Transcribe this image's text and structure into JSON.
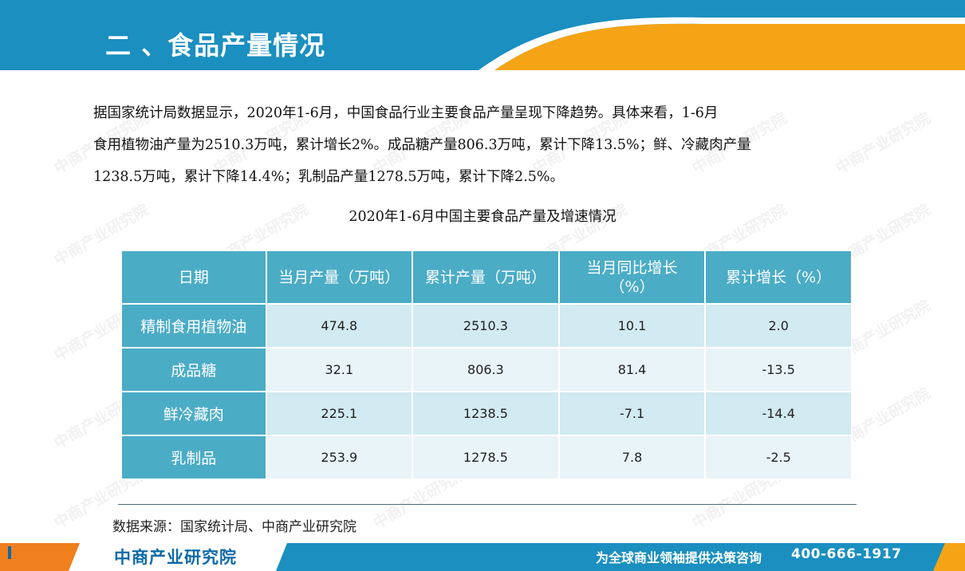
{
  "header": {
    "title": "二 、食品产量情况"
  },
  "paragraph": {
    "line1": "据国家统计局数据显示，2020年1-6月，中国食品行业主要食品产量呈现下降趋势。具体来看，1-6月",
    "line2": "食用植物油产量为2510.3万吨，累计增长2%。成品糖产量806.3万吨，累计下降13.5%；鲜、冷藏肉产量",
    "line3": "1238.5万吨，累计下降14.4%；乳制品产量1278.5万吨，累计下降2.5%。"
  },
  "table": {
    "title": "2020年1-6月中国主要食品产量及增速情况",
    "headers": [
      "日期",
      "当月产量（万吨）",
      "累计产量（万吨）",
      "当月同比增长\n（%）",
      "累计增长（%）"
    ],
    "header_line1": "当月同比增长",
    "header_line2": "（%）",
    "rows": [
      {
        "name": "精制食用植物油",
        "monthly": "474.8",
        "cumulative": "2510.3",
        "monthly_yoy": "10.1",
        "cumulative_growth": "2.0"
      },
      {
        "name": "成品糖",
        "monthly": "32.1",
        "cumulative": "806.3",
        "monthly_yoy": "81.4",
        "cumulative_growth": "-13.5"
      },
      {
        "name": "鲜冷藏肉",
        "monthly": "225.1",
        "cumulative": "1238.5",
        "monthly_yoy": "-7.1",
        "cumulative_growth": "-14.4"
      },
      {
        "name": "乳制品",
        "monthly": "253.9",
        "cumulative": "1278.5",
        "monthly_yoy": "7.8",
        "cumulative_growth": "-2.5"
      }
    ]
  },
  "source": "数据来源：国家统计局、中商产业研究院",
  "footer": {
    "brand": "中商产业研究院",
    "slogan": "为全球商业领袖提供决策咨询",
    "phone": "400-666-1917"
  },
  "watermark": {
    "name": "中商产业研究院",
    "url": "www.askci.com/reports"
  },
  "colors": {
    "header_blue": "#1a8fc0",
    "accent_orange": "#f5a416",
    "table_blue": "#4bacc6",
    "row_light": "#d2eaf1",
    "row_lighter": "#e9f4f8"
  }
}
